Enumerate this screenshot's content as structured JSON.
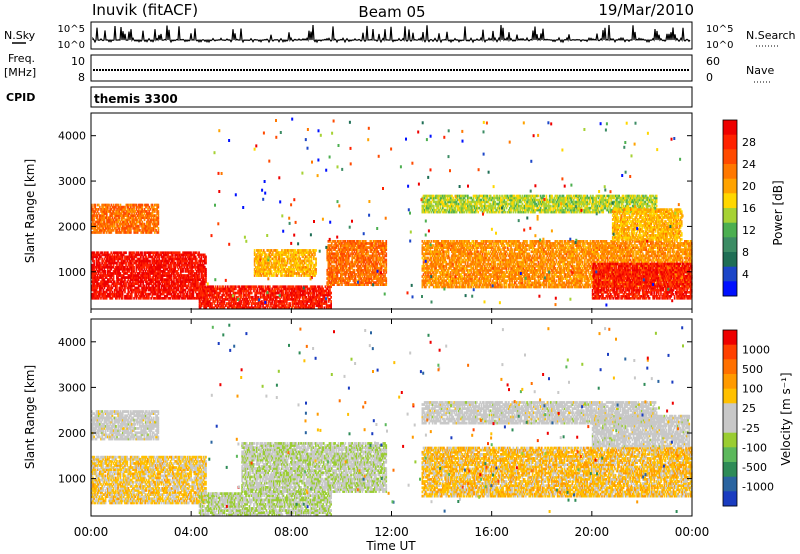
{
  "header": {
    "station": "Inuvik (fitACF)",
    "beam": "Beam 05",
    "date": "19/Mar/2010"
  },
  "strips": {
    "nsky_label": "N.Sky",
    "nsky_ticks": [
      "10^5",
      "10^0"
    ],
    "nsearch_label": "N.Search",
    "freq_label": "Freq.",
    "freq_unit": "[MHz]",
    "freq_ticks": [
      "10",
      "8"
    ],
    "nave_ticks": [
      "60",
      "0"
    ],
    "nave_label": "Nave",
    "cpid_label": "CPID",
    "cpid_value": "themis 3300"
  },
  "axes": {
    "xlabel": "Time UT",
    "ylabel": "Slant Range [km]",
    "x_tick_labels": [
      "00:00",
      "04:00",
      "08:00",
      "12:00",
      "16:00",
      "20:00",
      "00:00"
    ],
    "x_tick_hours": [
      0,
      4,
      8,
      12,
      16,
      20,
      24
    ],
    "y_tick_labels": [
      "1000",
      "2000",
      "3000",
      "4000"
    ],
    "y_tick_values": [
      1000,
      2000,
      3000,
      4000
    ],
    "xlim_hours": [
      0,
      24
    ],
    "ylim_km": [
      180,
      4500
    ]
  },
  "colorbars": {
    "power": {
      "title": "Power [dB]",
      "tick_labels": [
        "4",
        "8",
        "12",
        "16",
        "20",
        "24",
        "28"
      ],
      "colors": [
        "#0010ff",
        "#1c46c8",
        "#1f6e55",
        "#3c8c64",
        "#4caf50",
        "#a6d234",
        "#ffd700",
        "#ffa300",
        "#ff7800",
        "#ff4a00",
        "#ff2200",
        "#ee0000"
      ]
    },
    "velocity": {
      "title": "Velocity [m s⁻¹]",
      "tick_labels": [
        "1000",
        "500",
        "100",
        "25",
        "-25",
        "-100",
        "-500",
        "-1000"
      ],
      "colors": [
        "#1a3cc0",
        "#2a64a0",
        "#2e8b57",
        "#5cb85c",
        "#9acd32",
        "#c8c8c8",
        "#c8c8c8",
        "#ffc000",
        "#ff9a00",
        "#ff7000",
        "#ff4000",
        "#ee0000"
      ]
    }
  },
  "chart_data": [
    {
      "type": "heatmap",
      "title": "Power [dB]",
      "xlabel": "Time UT",
      "ylabel": "Slant Range [km]",
      "x_range_hours": [
        0,
        24
      ],
      "y_range_km": [
        180,
        4500
      ],
      "value_range": [
        0,
        30
      ],
      "echo_regions": [
        {
          "t_start": 0.0,
          "t_end": 4.6,
          "r_start": 400,
          "r_end": 1450,
          "level": 28
        },
        {
          "t_start": 0.0,
          "t_end": 2.7,
          "r_start": 1850,
          "r_end": 2500,
          "level": 22
        },
        {
          "t_start": 4.3,
          "t_end": 9.6,
          "r_start": 190,
          "r_end": 700,
          "level": 27
        },
        {
          "t_start": 6.5,
          "t_end": 9.0,
          "r_start": 900,
          "r_end": 1500,
          "level": 18
        },
        {
          "t_start": 9.4,
          "t_end": 11.8,
          "r_start": 700,
          "r_end": 1700,
          "level": 22
        },
        {
          "t_start": 13.2,
          "t_end": 24.0,
          "r_start": 650,
          "r_end": 1700,
          "level": 20
        },
        {
          "t_start": 13.2,
          "t_end": 22.6,
          "r_start": 2300,
          "r_end": 2700,
          "level": 14
        },
        {
          "t_start": 20.0,
          "t_end": 24.0,
          "r_start": 400,
          "r_end": 1200,
          "level": 27
        },
        {
          "t_start": 20.8,
          "t_end": 23.6,
          "r_start": 1700,
          "r_end": 2400,
          "level": 18
        }
      ]
    },
    {
      "type": "heatmap",
      "title": "Velocity [m s⁻¹]",
      "xlabel": "Time UT",
      "ylabel": "Slant Range [km]",
      "x_range_hours": [
        0,
        24
      ],
      "y_range_km": [
        180,
        4500
      ],
      "value_range": [
        -1000,
        1000
      ],
      "echo_regions": [
        {
          "t_start": 0.0,
          "t_end": 4.6,
          "r_start": 450,
          "r_end": 1500,
          "level": -200
        },
        {
          "t_start": 0.0,
          "t_end": 2.7,
          "r_start": 1850,
          "r_end": 2500,
          "level": 0
        },
        {
          "t_start": 4.3,
          "t_end": 9.6,
          "r_start": 190,
          "r_end": 700,
          "level": 150
        },
        {
          "t_start": 6.0,
          "t_end": 11.8,
          "r_start": 700,
          "r_end": 1800,
          "level": 120
        },
        {
          "t_start": 13.2,
          "t_end": 24.0,
          "r_start": 600,
          "r_end": 1700,
          "level": -250
        },
        {
          "t_start": 13.2,
          "t_end": 22.6,
          "r_start": 2200,
          "r_end": 2700,
          "level": 0
        },
        {
          "t_start": 20.0,
          "t_end": 23.9,
          "r_start": 1700,
          "r_end": 2400,
          "level": 0
        }
      ]
    }
  ]
}
